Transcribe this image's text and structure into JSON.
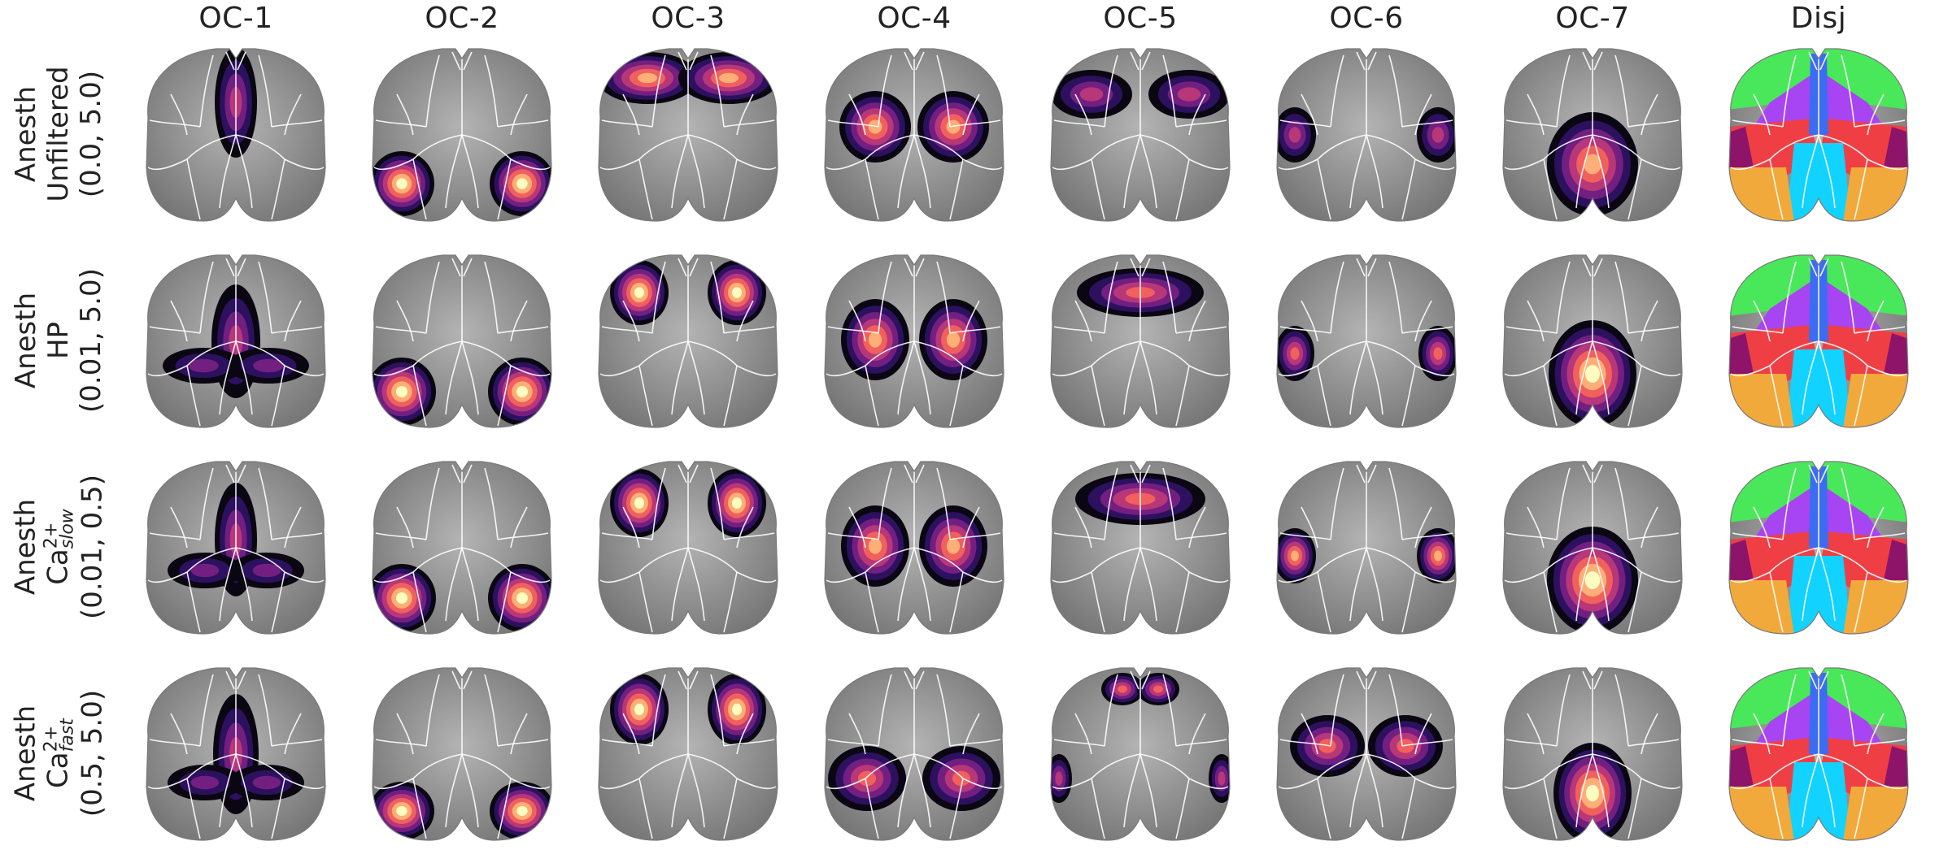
{
  "columns": [
    "OC-1",
    "OC-2",
    "OC-3",
    "OC-4",
    "OC-5",
    "OC-6",
    "OC-7",
    "Disj"
  ],
  "rows": [
    {
      "line1": "Anesth",
      "line2": "Unfiltered",
      "line2_sup": "",
      "line2_sub": "",
      "line3": "(0.0, 5.0)"
    },
    {
      "line1": "Anesth",
      "line2": "HP",
      "line2_sup": "",
      "line2_sub": "",
      "line3": "(0.01, 5.0)"
    },
    {
      "line1": "Anesth",
      "line2": "Ca",
      "line2_sup": "2+",
      "line2_sub": "slow",
      "line3": "(0.01, 0.5)"
    },
    {
      "line1": "Anesth",
      "line2": "Ca",
      "line2_sup": "2+",
      "line2_sub": "fast",
      "line3": "(0.5, 5.0)"
    }
  ],
  "colors": {
    "brain_gray": "#9a9a9a",
    "brain_dark": "#6e6e6e",
    "outline": "#ffffff",
    "heat": [
      "#0a0612",
      "#2c115f",
      "#721f81",
      "#b73779",
      "#f1605d",
      "#feaf77",
      "#fcfdbf"
    ],
    "disjoint": {
      "green": "#49e85a",
      "purple": "#a745f2",
      "red": "#ef3f45",
      "maroon": "#8e1469",
      "blue": "#3c6cf2",
      "cyan": "#12d2ff",
      "orange": "#f2a93c"
    }
  }
}
